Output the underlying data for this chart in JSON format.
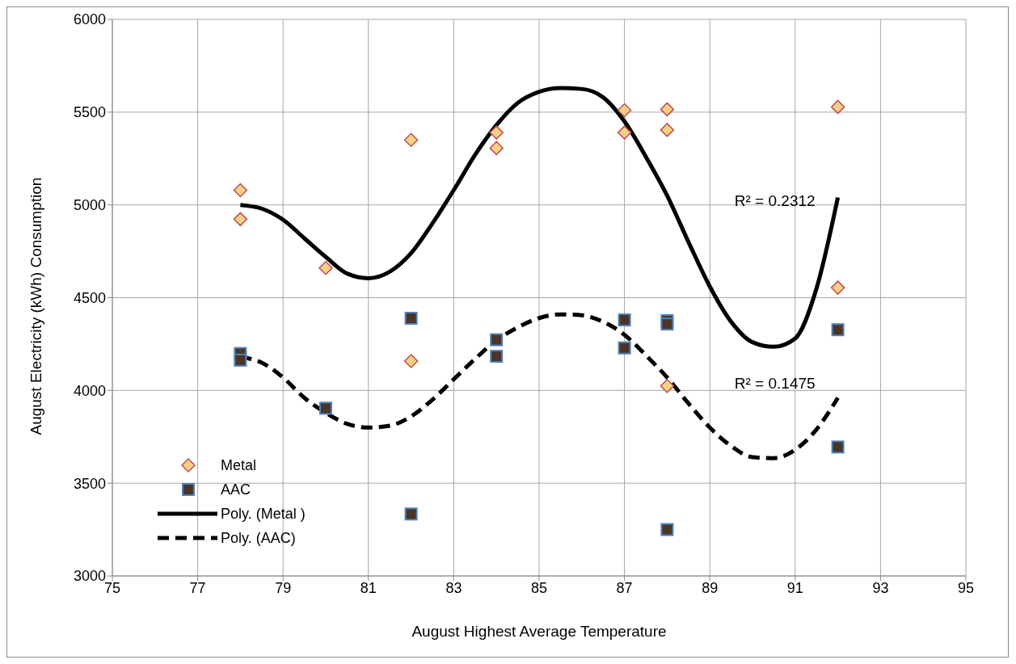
{
  "chart_data": {
    "type": "scatter",
    "xlabel": "August Highest Average Temperature",
    "ylabel": "August  Electricity (kWh) Consumption",
    "xlim": [
      75,
      95
    ],
    "xticks": [
      75,
      77,
      79,
      81,
      83,
      85,
      87,
      89,
      91,
      93,
      95
    ],
    "ylim": [
      3000,
      6000
    ],
    "yticks": [
      3000,
      3500,
      4000,
      4500,
      5000,
      5500,
      6000
    ],
    "grid": true,
    "legend": "bottom left",
    "annotations": [
      "R² = 0.2312",
      "R² = 0.1475"
    ],
    "series": [
      {
        "name": "Metal",
        "marker": "diamond",
        "color": "#f5d08a",
        "x": [
          78,
          78,
          80,
          82,
          82,
          84,
          84,
          87,
          87,
          88,
          88,
          88,
          92,
          92
        ],
        "values": [
          5079,
          4923,
          4660,
          5350,
          4158,
          5390,
          5306,
          5510,
          5390,
          5515,
          5404,
          4024,
          5528,
          4554
        ]
      },
      {
        "name": "AAC",
        "marker": "square",
        "color": "#4a3526",
        "x": [
          78,
          78,
          80,
          82,
          82,
          84,
          84,
          87,
          87,
          88,
          88,
          88,
          92,
          92
        ],
        "values": [
          4199,
          4163,
          3904,
          4389,
          3334,
          4273,
          4184,
          4380,
          4229,
          4376,
          4358,
          3250,
          4327,
          3695
        ]
      },
      {
        "name": "Poly. (Metal )",
        "type": "line",
        "marker": "none",
        "line_style": "solid",
        "color": "#000000",
        "x": [
          78,
          78.5,
          79,
          79.5,
          80,
          80.5,
          81,
          81.5,
          82,
          82.5,
          83,
          83.5,
          84,
          84.5,
          85,
          85.5,
          86,
          86.5,
          87,
          87.5,
          88,
          88.5,
          89,
          89.5,
          90,
          90.5,
          91,
          91.5,
          92
        ],
        "values": [
          5000,
          4980,
          4920,
          4820,
          4720,
          4630,
          4605,
          4640,
          4740,
          4900,
          5080,
          5270,
          5430,
          5550,
          5610,
          5630,
          5625,
          5580,
          5450,
          5260,
          5050,
          4800,
          4560,
          4370,
          4260,
          4235,
          4280,
          4550,
          5040
        ]
      },
      {
        "name": "Poly. (AAC)",
        "type": "line",
        "marker": "none",
        "line_style": "dashed",
        "color": "#000000",
        "x": [
          78,
          78.5,
          79,
          79.5,
          80,
          80.5,
          81,
          81.5,
          82,
          82.5,
          83,
          83.5,
          84,
          84.5,
          85,
          85.5,
          86,
          86.5,
          87,
          87.5,
          88,
          88.5,
          89,
          89.5,
          90,
          90.5,
          91,
          91.5,
          92
        ],
        "values": [
          4180,
          4150,
          4070,
          3960,
          3880,
          3820,
          3800,
          3810,
          3860,
          3950,
          4060,
          4170,
          4270,
          4340,
          4390,
          4410,
          4405,
          4370,
          4300,
          4190,
          4070,
          3930,
          3800,
          3700,
          3640,
          3635,
          3680,
          3790,
          3960
        ]
      }
    ]
  }
}
